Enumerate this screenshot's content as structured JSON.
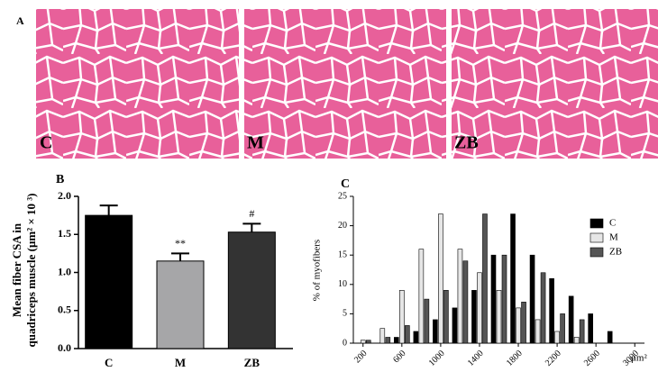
{
  "panel_a": {
    "label": "A",
    "images": [
      {
        "label": "C"
      },
      {
        "label": "M"
      },
      {
        "label": "ZB"
      }
    ]
  },
  "chart_data": [
    {
      "type": "bar",
      "panel_label": "B",
      "y_label": [
        "Mean fiber CSA in",
        "quadriceps muscle (μm² × 10 ³)"
      ],
      "categories": [
        "C",
        "M",
        "ZB"
      ],
      "values": [
        1.75,
        1.15,
        1.53
      ],
      "errors": [
        0.13,
        0.1,
        0.11
      ],
      "colors": [
        "#000000",
        "#a6a6a8",
        "#333333"
      ],
      "significance": [
        null,
        "**",
        "#"
      ],
      "ylim": [
        0,
        2
      ],
      "yticks": [
        {
          "value": 0,
          "label": "0.0"
        },
        0.5,
        {
          "value": 1,
          "label": "1.0"
        },
        1.5,
        {
          "value": 2,
          "label": "2.0"
        }
      ]
    },
    {
      "type": "grouped-histogram",
      "panel_label": "C",
      "y_label": "% of myofibers",
      "x_label": "μm²",
      "x": [
        200,
        400,
        600,
        800,
        1000,
        1200,
        1400,
        1600,
        1800,
        2000,
        2200,
        2400,
        2600,
        2800,
        3000
      ],
      "series": [
        {
          "name": "C",
          "color": "#000000",
          "values": [
            0,
            0,
            1,
            2,
            4,
            6,
            9,
            15,
            22,
            15,
            11,
            8,
            5,
            2,
            0
          ]
        },
        {
          "name": "M",
          "color": "#e6e6e6",
          "values": [
            0.5,
            2.5,
            9,
            16,
            22,
            16,
            12,
            9,
            6,
            4,
            2,
            1,
            0,
            0,
            0
          ]
        },
        {
          "name": "ZB",
          "color": "#555555",
          "values": [
            0.5,
            1,
            3,
            7.5,
            9,
            14,
            22,
            15,
            7,
            12,
            5,
            4,
            0,
            0,
            0
          ]
        }
      ],
      "xlim": [
        100,
        3100
      ],
      "xticks": [
        200,
        600,
        1000,
        1400,
        1800,
        2200,
        2600,
        3000
      ],
      "ylim": [
        0,
        25
      ],
      "yticks": [
        0,
        5,
        10,
        15,
        20,
        25
      ],
      "legend": "upper right"
    }
  ]
}
